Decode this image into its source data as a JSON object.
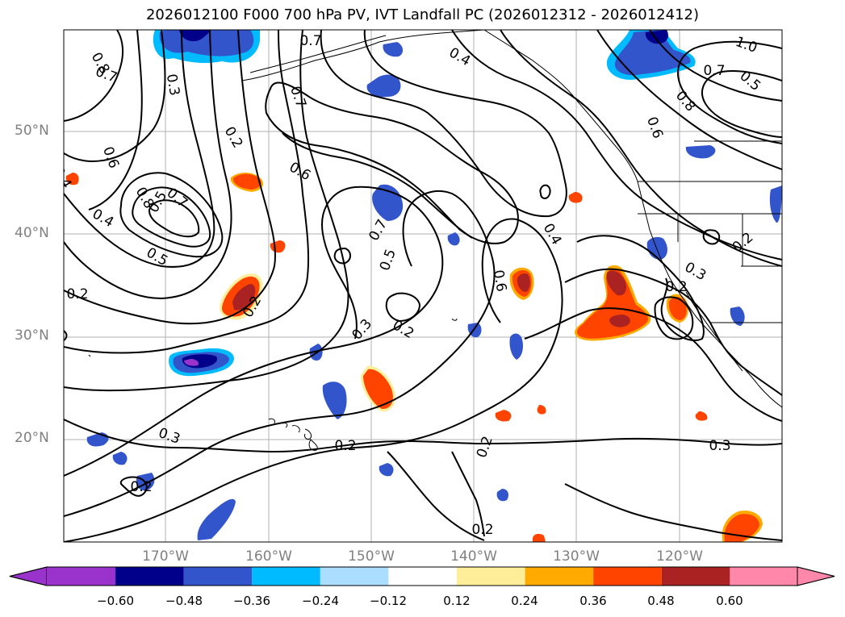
{
  "title": "2026012100 F000 700 hPa PV, IVT Landfall PC (2026012312 - 2026012412)",
  "map": {
    "lat_ticks": [
      "50°N",
      "40°N",
      "30°N",
      "20°N"
    ],
    "lon_ticks": [
      "170°W",
      "160°W",
      "150°W",
      "140°W",
      "130°W",
      "120°W"
    ],
    "contour_labels": [
      "0.7",
      "0.8",
      "0.7",
      "0.3",
      "0.4",
      "1.0",
      "0.7",
      "0.5",
      "0.8",
      "0.6",
      "0.6",
      "0.7",
      "0.2",
      "0.6",
      "0.5",
      "0.7",
      "0.8",
      "0.4",
      "0.5",
      "0.7",
      "0.5",
      "0.4",
      "0.6",
      "0.3",
      "0.2",
      "0.2",
      "0.3",
      "0.2",
      "0.3",
      "0.2",
      "0.2",
      "0.3",
      "0.2",
      "0.2",
      "0.2",
      "0.2",
      "0.4"
    ]
  },
  "colorbar": {
    "colors": [
      "#9933cc",
      "#00008b",
      "#3355cc",
      "#00bbff",
      "#aaddff",
      "#ffffff",
      "#ffee99",
      "#ffaa00",
      "#ff4400",
      "#aa2222",
      "#ff88aa"
    ],
    "tick_labels": [
      "−0.60",
      "−0.48",
      "−0.36",
      "−0.24",
      "−0.12",
      "0.12",
      "0.24",
      "0.36",
      "0.48",
      "0.60"
    ]
  }
}
